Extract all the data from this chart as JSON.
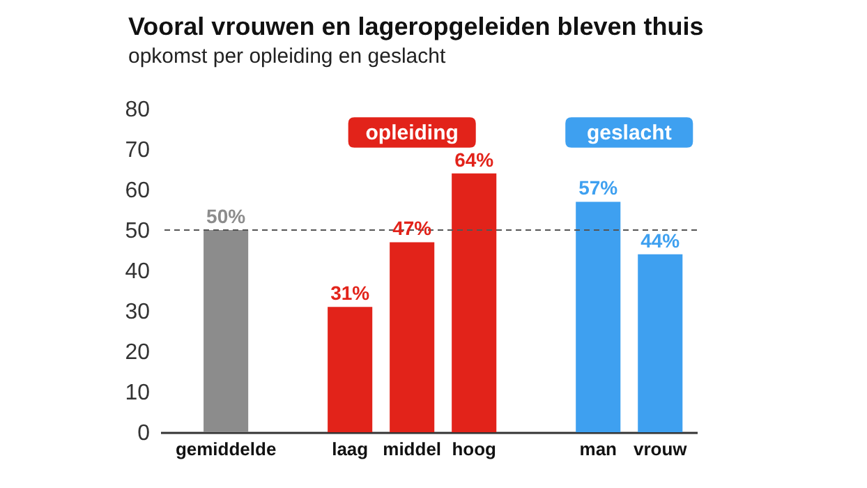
{
  "chart_data": {
    "type": "bar",
    "title": "Vooral vrouwen en lageropgeleiden bleven thuis",
    "subtitle": "opkomst per opleiding en geslacht",
    "categories": [
      "gemiddelde",
      null,
      "laag",
      "middel",
      "hoog",
      null,
      "man",
      "vrouw"
    ],
    "values": [
      50,
      null,
      31,
      47,
      64,
      null,
      57,
      44
    ],
    "colors": [
      "#8c8c8c",
      null,
      "#e2231a",
      "#e2231a",
      "#e2231a",
      null,
      "#3ea0f0",
      "#3ea0f0"
    ],
    "value_labels": [
      "50%",
      null,
      "31%",
      "47%",
      "64%",
      null,
      "57%",
      "44%"
    ],
    "ylim": [
      0,
      80
    ],
    "yticks": [
      0,
      10,
      20,
      30,
      40,
      50,
      60,
      70,
      80
    ],
    "grid": false,
    "legend": false,
    "ref_lines": [
      {
        "axis": "y",
        "value": 50,
        "color": "#555555",
        "line_style": "dashed"
      }
    ],
    "annotations": [
      "opleiding",
      "geslacht"
    ]
  }
}
